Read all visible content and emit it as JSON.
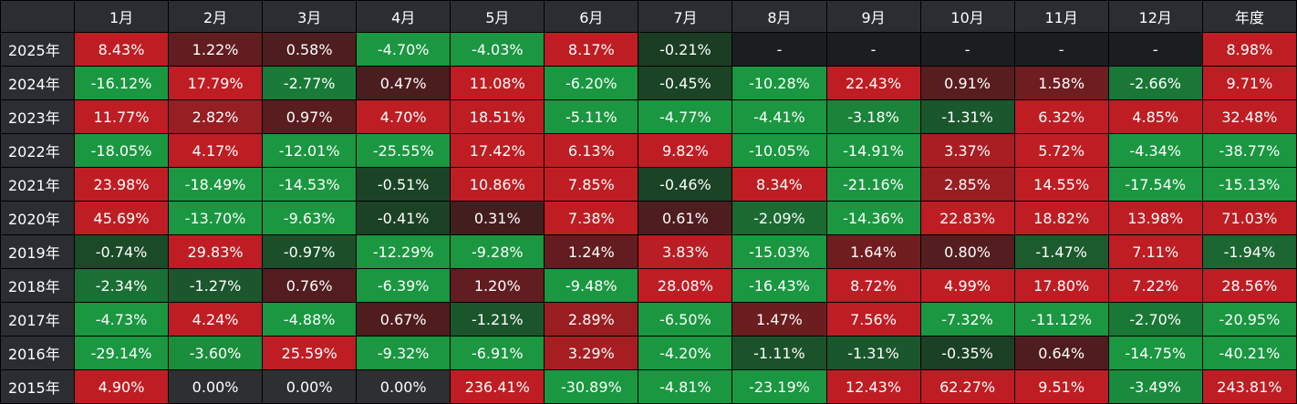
{
  "table": {
    "corner_label": "",
    "headers": [
      "1月",
      "2月",
      "3月",
      "4月",
      "5月",
      "6月",
      "7月",
      "8月",
      "9月",
      "10月",
      "11月",
      "12月",
      "年度"
    ],
    "rows": [
      {
        "year": "2025年",
        "cells": [
          "8.43%",
          "1.22%",
          "0.58%",
          "-4.70%",
          "-4.03%",
          "8.17%",
          "-0.21%",
          "-",
          "-",
          "-",
          "-",
          "-",
          "8.98%"
        ]
      },
      {
        "year": "2024年",
        "cells": [
          "-16.12%",
          "17.79%",
          "-2.77%",
          "0.47%",
          "11.08%",
          "-6.20%",
          "-0.45%",
          "-10.28%",
          "22.43%",
          "0.91%",
          "1.58%",
          "-2.66%",
          "9.71%"
        ]
      },
      {
        "year": "2023年",
        "cells": [
          "11.77%",
          "2.82%",
          "0.97%",
          "4.70%",
          "18.51%",
          "-5.11%",
          "-4.77%",
          "-4.41%",
          "-3.18%",
          "-1.31%",
          "6.32%",
          "4.85%",
          "32.48%"
        ]
      },
      {
        "year": "2022年",
        "cells": [
          "-18.05%",
          "4.17%",
          "-12.01%",
          "-25.55%",
          "17.42%",
          "6.13%",
          "9.82%",
          "-10.05%",
          "-14.91%",
          "3.37%",
          "5.72%",
          "-4.34%",
          "-38.77%"
        ]
      },
      {
        "year": "2021年",
        "cells": [
          "23.98%",
          "-18.49%",
          "-14.53%",
          "-0.51%",
          "10.86%",
          "7.85%",
          "-0.46%",
          "8.34%",
          "-21.16%",
          "2.85%",
          "14.55%",
          "-17.54%",
          "-15.13%"
        ]
      },
      {
        "year": "2020年",
        "cells": [
          "45.69%",
          "-13.70%",
          "-9.63%",
          "-0.41%",
          "0.31%",
          "7.38%",
          "0.61%",
          "-2.09%",
          "-14.36%",
          "22.83%",
          "18.82%",
          "13.98%",
          "71.03%"
        ]
      },
      {
        "year": "2019年",
        "cells": [
          "-0.74%",
          "29.83%",
          "-0.97%",
          "-12.29%",
          "-9.28%",
          "1.24%",
          "3.83%",
          "-15.03%",
          "1.64%",
          "0.80%",
          "-1.47%",
          "7.11%",
          "-1.94%"
        ]
      },
      {
        "year": "2018年",
        "cells": [
          "-2.34%",
          "-1.27%",
          "0.76%",
          "-6.39%",
          "1.20%",
          "-9.48%",
          "28.08%",
          "-16.43%",
          "8.72%",
          "4.99%",
          "17.80%",
          "7.22%",
          "28.56%"
        ]
      },
      {
        "year": "2017年",
        "cells": [
          "-4.73%",
          "4.24%",
          "-4.88%",
          "0.67%",
          "-1.21%",
          "2.89%",
          "-6.50%",
          "1.47%",
          "7.56%",
          "-7.32%",
          "-11.12%",
          "-2.70%",
          "-20.95%"
        ]
      },
      {
        "year": "2016年",
        "cells": [
          "-29.14%",
          "-3.60%",
          "25.59%",
          "-9.32%",
          "-6.91%",
          "3.29%",
          "-4.20%",
          "-1.11%",
          "-1.31%",
          "-0.35%",
          "0.64%",
          "-14.75%",
          "-40.21%"
        ]
      },
      {
        "year": "2015年",
        "cells": [
          "4.90%",
          "0.00%",
          "0.00%",
          "0.00%",
          "236.41%",
          "-30.89%",
          "-4.81%",
          "-23.19%",
          "12.43%",
          "62.27%",
          "9.51%",
          "-3.49%",
          "243.81%"
        ]
      }
    ]
  },
  "colors": {
    "header_bg": "#2b2d33",
    "empty_bg": "#1b1d21",
    "zero_bg": "#2d2f33",
    "pos_light": "#3a1d1e",
    "pos_strong": "#be1e23",
    "neg_light": "#1b3822",
    "neg_strong": "#1a9740"
  }
}
